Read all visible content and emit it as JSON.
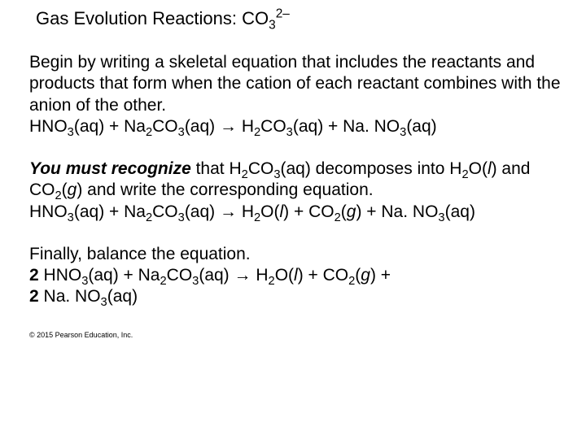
{
  "title_main": "Gas Evolution Reactions: CO",
  "title_sub": "3",
  "title_sup": "2–",
  "p1": {
    "t1": "Begin by writing a skeletal equation that includes the reactants and products that form when the cation of each reactant combines with the anion of the other.",
    "eq_a": "HNO",
    "eq_b": "3",
    "eq_c": "(aq) + Na",
    "eq_d": "2",
    "eq_e": "CO",
    "eq_f": "3",
    "eq_g": "(aq) →  H",
    "eq_h": "2",
    "eq_i": "CO",
    "eq_j": "3",
    "eq_k": "(aq) + Na. NO",
    "eq_l": "3",
    "eq_m": "(aq)"
  },
  "p2": {
    "lead": "You must recognize",
    "t1": " that H",
    "s1": "2",
    "t2": "CO",
    "s2": "3",
    "t3": "(aq) decomposes into H",
    "s3": "2",
    "t4": "O(",
    "it1": "l",
    "t5": ") and CO",
    "s4": "2",
    "t6": "(",
    "it2": "g",
    "t7": ") and write the corresponding equation.",
    "eq_a": "HNO",
    "eq_b": "3",
    "eq_c": "(aq) + Na",
    "eq_d": "2",
    "eq_e": "CO",
    "eq_f": "3",
    "eq_g": "(aq) →  H",
    "eq_h": "2",
    "eq_i": "O(",
    "eq_it1": "l",
    "eq_j": ") + CO",
    "eq_k": "2",
    "eq_l": "(",
    "eq_it2": "g",
    "eq_m": ") + Na. NO",
    "eq_n": "3",
    "eq_o": "(aq)"
  },
  "p3": {
    "t1": "Finally, balance the equation.",
    "b1": "2",
    "eq_a": " HNO",
    "eq_b": "3",
    "eq_c": "(aq) + Na",
    "eq_d": "2",
    "eq_e": "CO",
    "eq_f": "3",
    "eq_g": "(aq) → H",
    "eq_h": "2",
    "eq_i": "O(",
    "eq_it1": "l",
    "eq_j": ") + CO",
    "eq_k": "2",
    "eq_l": "(",
    "eq_it2": "g",
    "eq_m": ") + ",
    "b2": "2",
    "eq_n": " Na. NO",
    "eq_o": "3",
    "eq_p": "(aq)"
  },
  "copyright": "© 2015 Pearson Education, Inc."
}
